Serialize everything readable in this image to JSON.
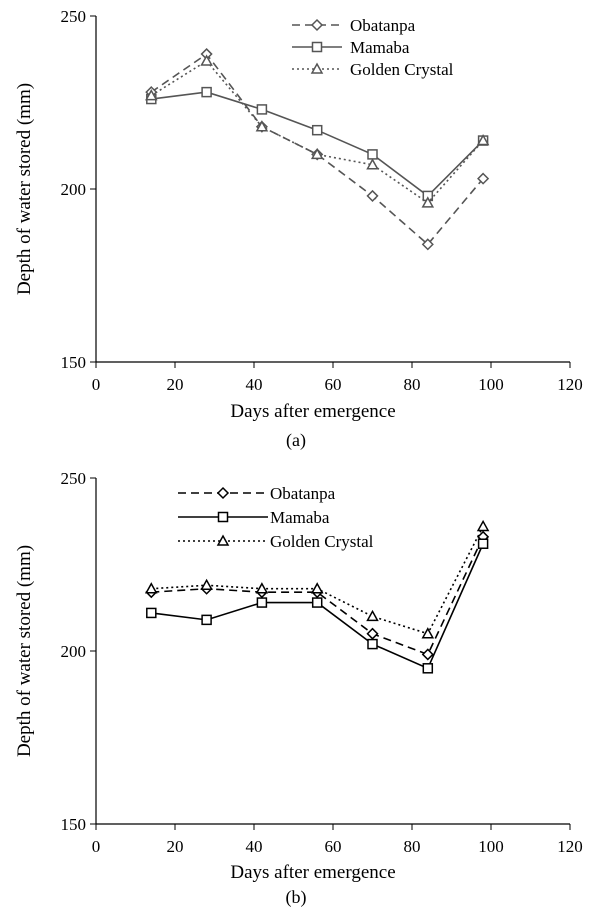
{
  "chart_data": [
    {
      "type": "line",
      "panel_label": "(a)",
      "xlabel": "Days after emergence",
      "ylabel": "Depth of water stored (mm)",
      "xlim": [
        0,
        120
      ],
      "ylim": [
        150,
        250
      ],
      "xticks": [
        "0",
        "20",
        "40",
        "60",
        "80",
        "100",
        "120"
      ],
      "yticks": [
        "150",
        "200",
        "250"
      ],
      "legend_position": "top-right",
      "x": [
        14,
        28,
        42,
        56,
        70,
        84,
        98
      ],
      "series": [
        {
          "name": "Obatanpa",
          "marker": "diamond",
          "style": "dashed",
          "color": "#555555",
          "values": [
            228,
            239,
            218,
            210,
            198,
            184,
            203
          ]
        },
        {
          "name": "Mamaba",
          "marker": "square",
          "style": "solid",
          "color": "#555555",
          "values": [
            226,
            228,
            223,
            217,
            210,
            198,
            214
          ]
        },
        {
          "name": "Golden Crystal",
          "marker": "triangle",
          "style": "dotted",
          "color": "#555555",
          "values": [
            227,
            237,
            218,
            210,
            207,
            196,
            214
          ]
        }
      ]
    },
    {
      "type": "line",
      "panel_label": "(b)",
      "xlabel": "Days after emergence",
      "ylabel": "Depth of water stored (mm)",
      "xlim": [
        0,
        120
      ],
      "ylim": [
        150,
        250
      ],
      "xticks": [
        "0",
        "20",
        "40",
        "60",
        "80",
        "100",
        "120"
      ],
      "yticks": [
        "150",
        "200",
        "250"
      ],
      "legend_position": "top-center",
      "x": [
        14,
        28,
        42,
        56,
        70,
        84,
        98
      ],
      "series": [
        {
          "name": "Obatanpa",
          "marker": "diamond",
          "style": "dashed",
          "color": "#000000",
          "values": [
            217,
            218,
            217,
            217,
            205,
            199,
            233
          ]
        },
        {
          "name": "Mamaba",
          "marker": "square",
          "style": "solid",
          "color": "#000000",
          "values": [
            211,
            209,
            214,
            214,
            202,
            195,
            231
          ]
        },
        {
          "name": "Golden Crystal",
          "marker": "triangle",
          "style": "dotted",
          "color": "#000000",
          "values": [
            218,
            219,
            218,
            218,
            210,
            205,
            236
          ]
        }
      ]
    }
  ]
}
